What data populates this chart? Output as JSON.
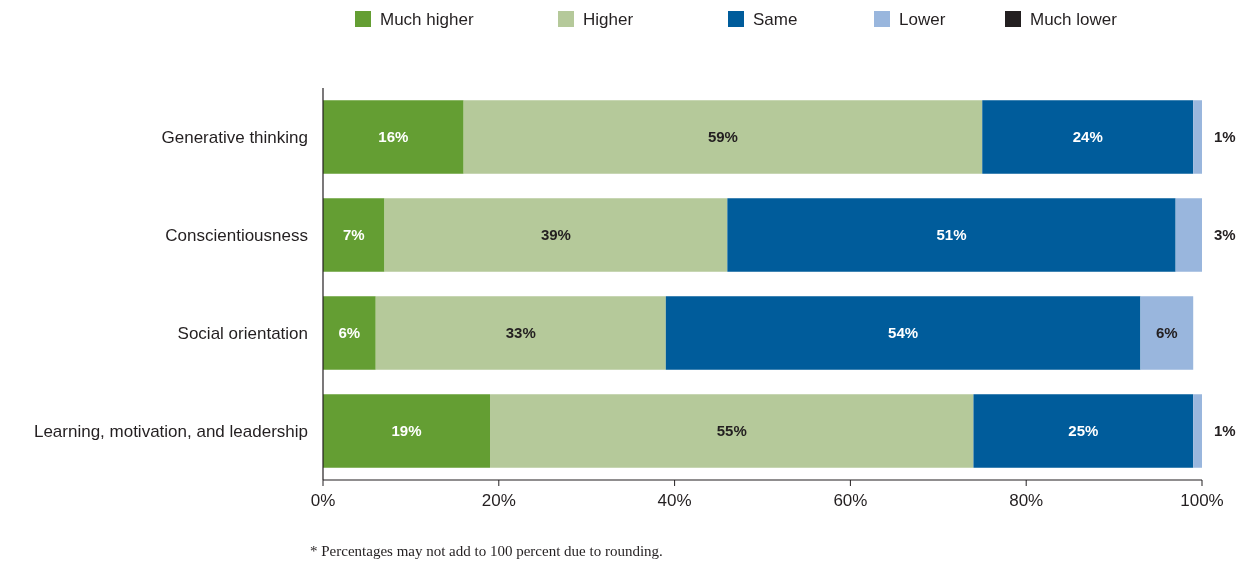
{
  "chart_data": {
    "type": "bar",
    "orientation": "horizontal",
    "stacked": true,
    "categories": [
      "Generative thinking",
      "Conscientiousness",
      "Social orientation",
      "Learning, motivation, and leadership"
    ],
    "series": [
      {
        "name": "Much higher",
        "color": "#649e33",
        "values": [
          16,
          7,
          6,
          19
        ],
        "value_labels": [
          "16%",
          "7%",
          "6%",
          "19%"
        ]
      },
      {
        "name": "Higher",
        "color": "#b5c99a",
        "values": [
          59,
          39,
          33,
          55
        ],
        "value_labels": [
          "59%",
          "39%",
          "33%",
          "55%"
        ]
      },
      {
        "name": "Same",
        "color": "#005c9b",
        "values": [
          24,
          51,
          54,
          25
        ],
        "value_labels": [
          "24%",
          "51%",
          "54%",
          "25%"
        ]
      },
      {
        "name": "Lower",
        "color": "#99b6dd",
        "values": [
          1,
          3,
          6,
          1
        ],
        "value_labels": [
          "1%",
          "3%",
          "6%",
          "1%"
        ]
      },
      {
        "name": "Much lower",
        "color": "#231f20",
        "values": [
          0,
          0,
          0,
          0
        ]
      }
    ],
    "xlim": [
      0,
      100
    ],
    "xticks": [
      {
        "value": 0,
        "label": "0%"
      },
      {
        "value": 20,
        "label": "20%"
      },
      {
        "value": 40,
        "label": "40%"
      },
      {
        "value": 60,
        "label": "60%"
      },
      {
        "value": 80,
        "label": "80%"
      },
      {
        "value": 100,
        "label": "100%"
      }
    ],
    "grid": false,
    "legend": "top",
    "annotations": [
      "* Percentages may not add to 100 percent due to rounding."
    ]
  }
}
